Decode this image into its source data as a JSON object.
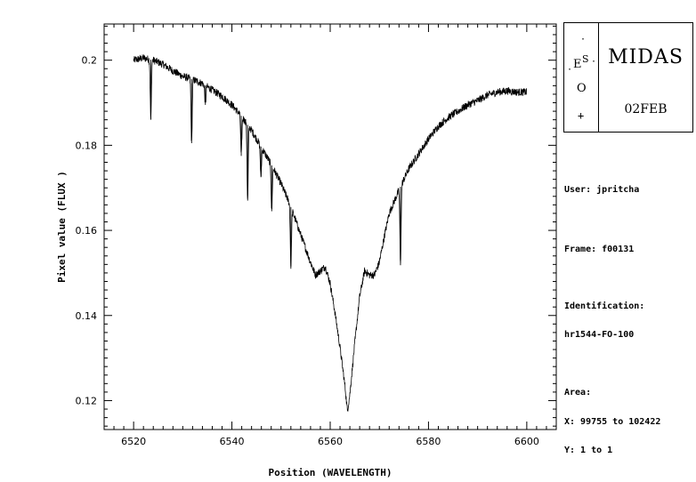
{
  "chart_data": {
    "type": "line",
    "title": "",
    "xlabel": "Position (WAVELENGTH)",
    "ylabel": "Pixel value (FLUX )",
    "xlim": [
      6514,
      6606
    ],
    "ylim": [
      0.1132,
      0.2085
    ],
    "x_ticks": [
      6520,
      6540,
      6560,
      6580,
      6600
    ],
    "y_ticks": [
      0.12,
      0.14,
      0.16,
      0.18,
      0.2
    ],
    "y_tick_labels": [
      "0.12",
      "0.14",
      "0.16",
      "0.18",
      "0.2"
    ],
    "grid": false,
    "series": [
      {
        "x": [
          6520,
          6522,
          6524,
          6526,
          6528,
          6530,
          6532,
          6534,
          6536,
          6538,
          6540,
          6542,
          6544,
          6546,
          6548,
          6550,
          6552,
          6554,
          6556,
          6557,
          6558,
          6559,
          6560,
          6561,
          6562,
          6563,
          6563.5,
          6564,
          6565,
          6566,
          6567,
          6568,
          6569,
          6570,
          6571,
          6572,
          6574,
          6576,
          6578,
          6580,
          6582,
          6584,
          6586,
          6588,
          6590,
          6592,
          6594,
          6596,
          6598,
          6600
        ],
        "y": [
          0.2,
          0.2005,
          0.2,
          0.199,
          0.1975,
          0.1962,
          0.1955,
          0.1945,
          0.193,
          0.1915,
          0.1895,
          0.1868,
          0.1835,
          0.1795,
          0.1755,
          0.171,
          0.1655,
          0.159,
          0.1525,
          0.1495,
          0.1505,
          0.1515,
          0.1475,
          0.1405,
          0.1325,
          0.1235,
          0.1175,
          0.1215,
          0.1335,
          0.1445,
          0.1505,
          0.1495,
          0.1495,
          0.1525,
          0.1585,
          0.164,
          0.1695,
          0.1745,
          0.178,
          0.1815,
          0.1845,
          0.1865,
          0.188,
          0.1895,
          0.1905,
          0.1918,
          0.1925,
          0.1928,
          0.1925,
          0.1925
        ],
        "absorption_lines": [
          {
            "x": 6523.5,
            "y": 0.186
          },
          {
            "x": 6531.8,
            "y": 0.1805
          },
          {
            "x": 6534.6,
            "y": 0.1895
          },
          {
            "x": 6541.9,
            "y": 0.1775
          },
          {
            "x": 6543.2,
            "y": 0.167
          },
          {
            "x": 6545.9,
            "y": 0.1725
          },
          {
            "x": 6548.1,
            "y": 0.1645
          },
          {
            "x": 6552.0,
            "y": 0.1515
          },
          {
            "x": 6574.3,
            "y": 0.1518
          }
        ]
      }
    ]
  },
  "logo": {
    "name": "MIDAS",
    "date": "02FEB",
    "eso_e": "E",
    "eso_s": "S",
    "eso_o": "O"
  },
  "info": {
    "user": "User: jpritcha",
    "frame": "Frame: f00131",
    "identification_label": "Identification:",
    "identification": "hr1544-FO-100",
    "area_label": "Area:",
    "area_x": "X: 99755 to 102422",
    "area_y": "Y: 1 to 1"
  }
}
